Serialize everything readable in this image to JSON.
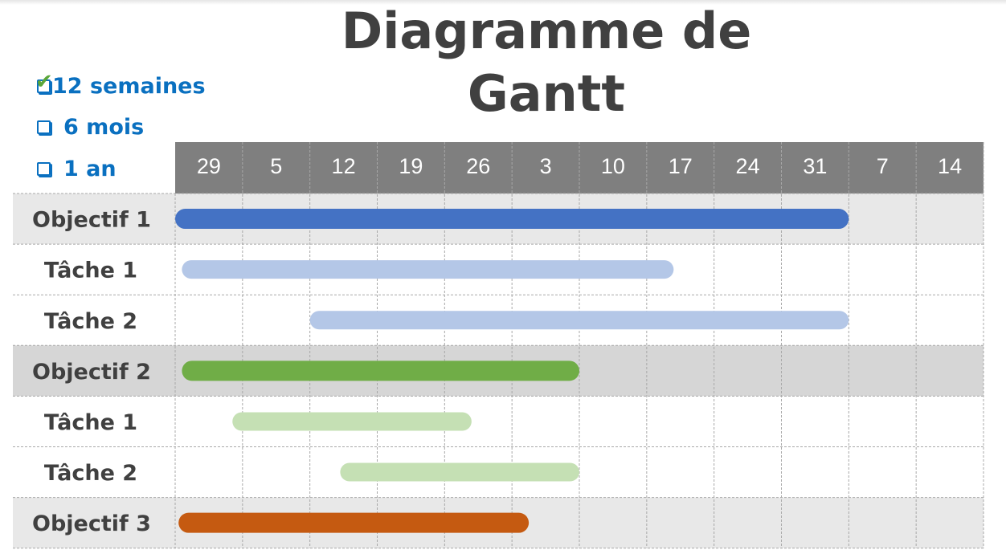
{
  "title": "Diagramme de Gantt",
  "options": [
    {
      "label": "12 semaines",
      "checked": true
    },
    {
      "label": "6 mois",
      "checked": false
    },
    {
      "label": "1 an",
      "checked": false
    }
  ],
  "chart_data": {
    "type": "gantt",
    "title": "Diagramme de Gantt",
    "x_unit": "weeks from first column",
    "xlim": [
      0,
      12
    ],
    "categories": [
      "29",
      "5",
      "12",
      "19",
      "26",
      "3",
      "10",
      "17",
      "24",
      "31",
      "7",
      "14"
    ],
    "header_color": "#7f7f7f",
    "tasks": [
      {
        "label": "Objectif 1",
        "type": "objective",
        "start": 0,
        "end": 10,
        "color": "#4472c4",
        "row_bg": "#e8e8e8"
      },
      {
        "label": "Tâche 1",
        "type": "task",
        "start": 0.1,
        "end": 7.4,
        "color": "#b4c7e7",
        "row_bg": "#ffffff"
      },
      {
        "label": "Tâche 2",
        "type": "task",
        "start": 2,
        "end": 10,
        "color": "#b4c7e7",
        "row_bg": "#ffffff"
      },
      {
        "label": "Objectif 2",
        "type": "objective",
        "start": 0.1,
        "end": 6,
        "color": "#70ad47",
        "row_bg": "#d6d6d6"
      },
      {
        "label": "Tâche 1",
        "type": "task",
        "start": 0.85,
        "end": 4.4,
        "color": "#c5e0b4",
        "row_bg": "#ffffff"
      },
      {
        "label": "Tâche 2",
        "type": "task",
        "start": 2.45,
        "end": 6,
        "color": "#c5e0b4",
        "row_bg": "#ffffff"
      },
      {
        "label": "Objectif 3",
        "type": "objective",
        "start": 0.05,
        "end": 5.25,
        "color": "#c55a11",
        "row_bg": "#e8e8e8"
      }
    ]
  }
}
